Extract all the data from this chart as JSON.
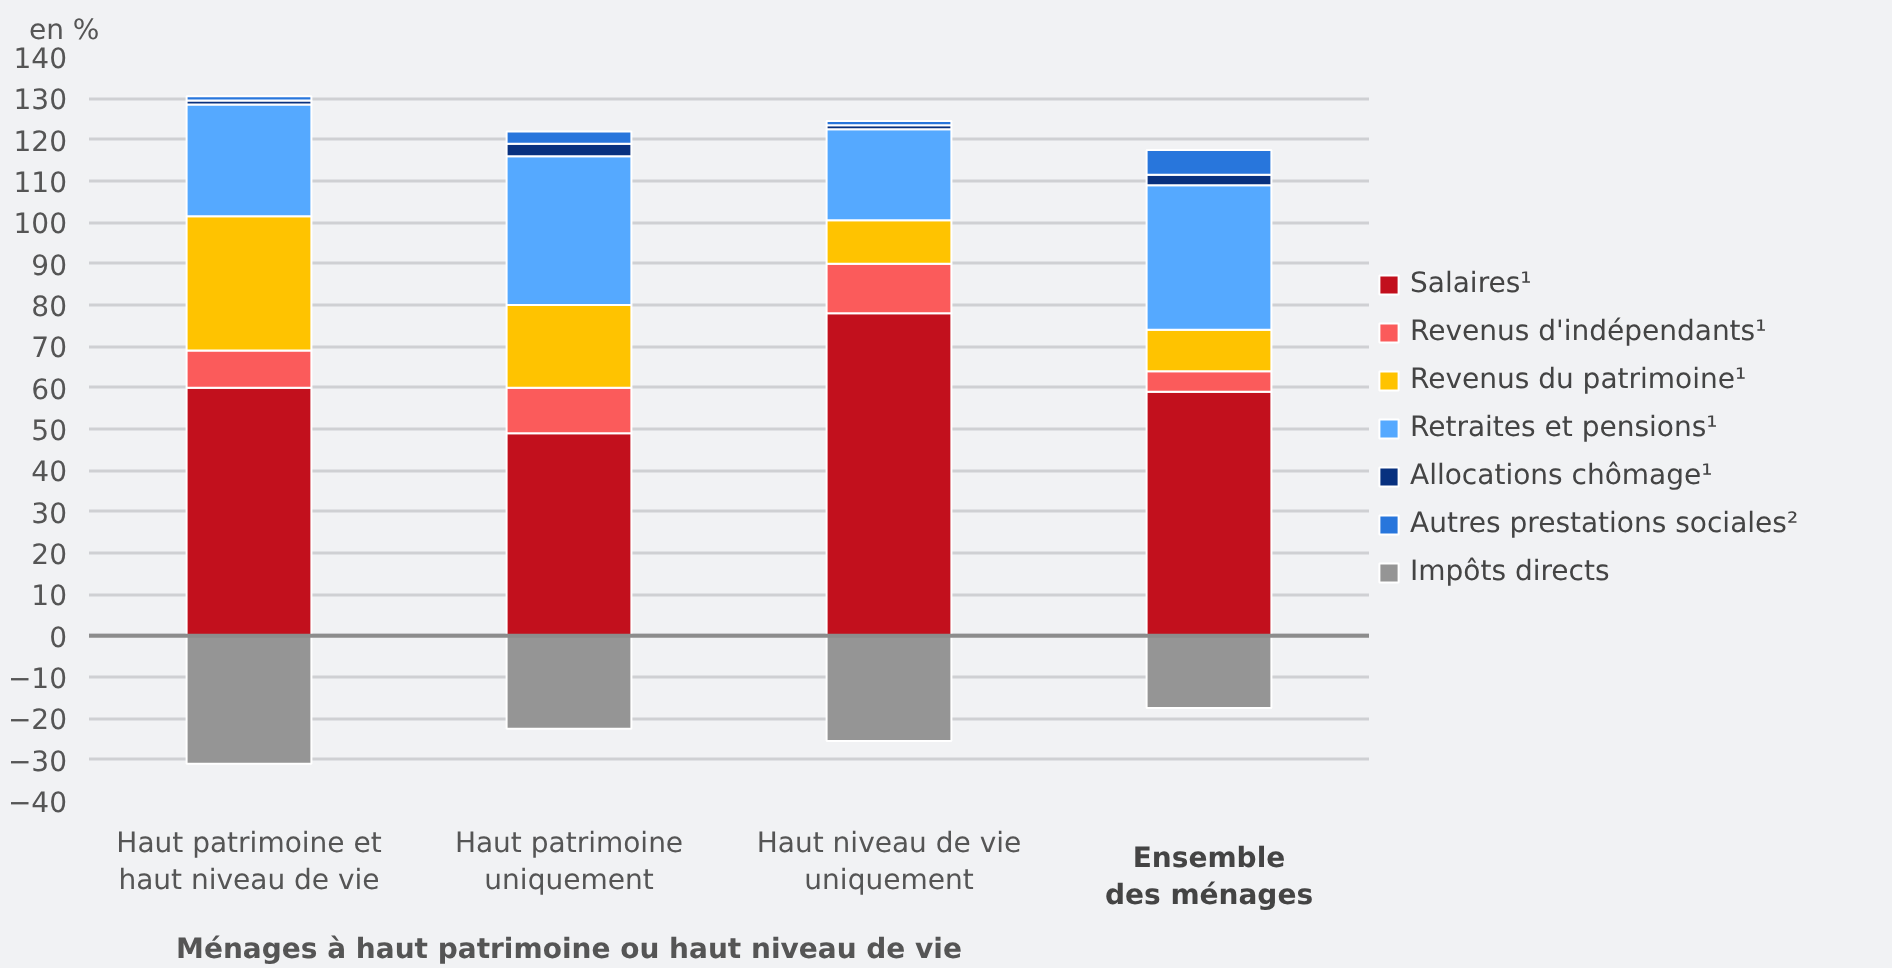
{
  "chart_data": {
    "type": "bar",
    "stacked": true,
    "ylabel": "en %",
    "categories": [
      "Haut patrimoine et\nhaut niveau de vie",
      "Haut patrimoine\nuniquement",
      "Haut niveau de vie\nuniquement",
      "Ensemble\ndes ménages"
    ],
    "series": [
      {
        "name": "Salaires¹",
        "color": "#c2101d",
        "values": [
          60,
          49,
          78,
          59
        ]
      },
      {
        "name": "Revenus d'indépendants¹",
        "color": "#fb5b5b",
        "values": [
          9,
          11,
          12,
          5
        ]
      },
      {
        "name": "Revenus du patrimoine¹",
        "color": "#ffc300",
        "values": [
          32.5,
          20,
          10.5,
          10
        ]
      },
      {
        "name": "Retraites et pensions¹",
        "color": "#55a9ff",
        "values": [
          27,
          36,
          22,
          35
        ]
      },
      {
        "name": "Allocations chômage¹",
        "color": "#08317f",
        "values": [
          1,
          3,
          1,
          2.5
        ]
      },
      {
        "name": "Autres prestations sociales²",
        "color": "#2876dc",
        "values": [
          1,
          3,
          1,
          6
        ]
      },
      {
        "name": "Impôts directs",
        "color": "#959595",
        "values": [
          -31,
          -22.5,
          -25.5,
          -17.5
        ]
      }
    ],
    "ylim": [
      -40,
      140
    ],
    "yticks": [
      -40,
      -30,
      -20,
      -10,
      0,
      10,
      20,
      30,
      40,
      50,
      60,
      70,
      80,
      90,
      100,
      110,
      120,
      130,
      140
    ],
    "grid": "y",
    "legend": "right",
    "annotations": [
      "Ménages à haut patrimoine ou haut niveau de vie"
    ]
  }
}
